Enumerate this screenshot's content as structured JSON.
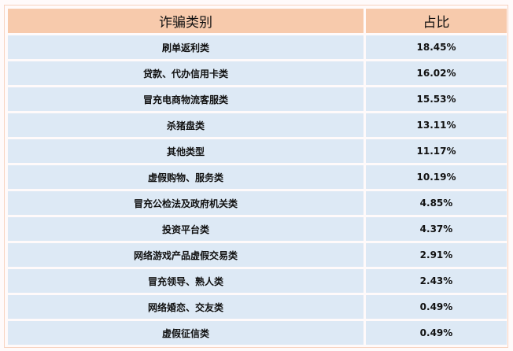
{
  "table": {
    "headers": [
      "诈骗类别",
      "占比"
    ],
    "rows": [
      {
        "category": "刷单返利类",
        "share": "18.45%"
      },
      {
        "category": "贷款、代办信用卡类",
        "share": "16.02%"
      },
      {
        "category": "冒充电商物流客服类",
        "share": "15.53%"
      },
      {
        "category": "杀猪盘类",
        "share": "13.11%"
      },
      {
        "category": "其他类型",
        "share": "11.17%"
      },
      {
        "category": "虚假购物、服务类",
        "share": "10.19%"
      },
      {
        "category": "冒充公检法及政府机关类",
        "share": "4.85%"
      },
      {
        "category": "投资平台类",
        "share": "4.37%"
      },
      {
        "category": "网络游戏产品虚假交易类",
        "share": "2.91%"
      },
      {
        "category": "冒充领导、熟人类",
        "share": "2.43%"
      },
      {
        "category": "网络婚恋、交友类",
        "share": "0.49%"
      },
      {
        "category": "虚假征信类",
        "share": "0.49%"
      }
    ]
  },
  "colors": {
    "header_bg": "#f7caac",
    "row_bg": "#dde9f5"
  }
}
